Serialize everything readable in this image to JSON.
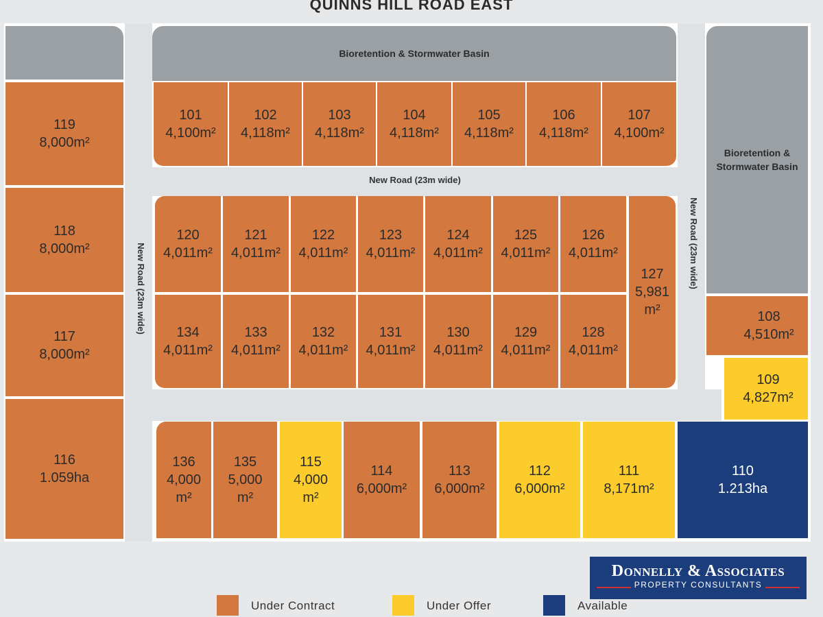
{
  "title": "QUINNS HILL ROAD EAST",
  "basins": {
    "top": "Bioretention & Stormwater Basin",
    "right": "Bioretention & Stormwater Basin"
  },
  "roads": {
    "horizontal": "New Road (23m wide)",
    "left_vertical": "New Road (23m wide)",
    "right_vertical": "New Road (23m wide)"
  },
  "colors": {
    "under_contract": "#d3783f",
    "under_offer": "#fbcc2b",
    "available": "#1c3d7c",
    "basin": "#9aa0a4"
  },
  "lots": {
    "l101": {
      "num": "101",
      "area": "4,100m²",
      "status": "under_contract"
    },
    "l102": {
      "num": "102",
      "area": "4,118m²",
      "status": "under_contract"
    },
    "l103": {
      "num": "103",
      "area": "4,118m²",
      "status": "under_contract"
    },
    "l104": {
      "num": "104",
      "area": "4,118m²",
      "status": "under_contract"
    },
    "l105": {
      "num": "105",
      "area": "4,118m²",
      "status": "under_contract"
    },
    "l106": {
      "num": "106",
      "area": "4,118m²",
      "status": "under_contract"
    },
    "l107": {
      "num": "107",
      "area": "4,100m²",
      "status": "under_contract"
    },
    "l108": {
      "num": "108",
      "area": "4,510m²",
      "status": "under_contract"
    },
    "l109": {
      "num": "109",
      "area": "4,827m²",
      "status": "under_offer"
    },
    "l110": {
      "num": "110",
      "area": "1.213ha",
      "status": "available"
    },
    "l111": {
      "num": "111",
      "area": "8,171m²",
      "status": "under_offer"
    },
    "l112": {
      "num": "112",
      "area": "6,000m²",
      "status": "under_offer"
    },
    "l113": {
      "num": "113",
      "area": "6,000m²",
      "status": "under_contract"
    },
    "l114": {
      "num": "114",
      "area": "6,000m²",
      "status": "under_contract"
    },
    "l115": {
      "num": "115",
      "area": "4,000 m²",
      "status": "under_offer"
    },
    "l116": {
      "num": "116",
      "area": "1.059ha",
      "status": "under_contract"
    },
    "l117": {
      "num": "117",
      "area": "8,000m²",
      "status": "under_contract"
    },
    "l118": {
      "num": "118",
      "area": "8,000m²",
      "status": "under_contract"
    },
    "l119": {
      "num": "119",
      "area": "8,000m²",
      "status": "under_contract"
    },
    "l120": {
      "num": "120",
      "area": "4,011m²",
      "status": "under_contract"
    },
    "l121": {
      "num": "121",
      "area": "4,011m²",
      "status": "under_contract"
    },
    "l122": {
      "num": "122",
      "area": "4,011m²",
      "status": "under_contract"
    },
    "l123": {
      "num": "123",
      "area": "4,011m²",
      "status": "under_contract"
    },
    "l124": {
      "num": "124",
      "area": "4,011m²",
      "status": "under_contract"
    },
    "l125": {
      "num": "125",
      "area": "4,011m²",
      "status": "under_contract"
    },
    "l126": {
      "num": "126",
      "area": "4,011m²",
      "status": "under_contract"
    },
    "l127": {
      "num": "127",
      "area": "5,981 m²",
      "status": "under_contract"
    },
    "l128": {
      "num": "128",
      "area": "4,011m²",
      "status": "under_contract"
    },
    "l129": {
      "num": "129",
      "area": "4,011m²",
      "status": "under_contract"
    },
    "l130": {
      "num": "130",
      "area": "4,011m²",
      "status": "under_contract"
    },
    "l131": {
      "num": "131",
      "area": "4,011m²",
      "status": "under_contract"
    },
    "l132": {
      "num": "132",
      "area": "4,011m²",
      "status": "under_contract"
    },
    "l133": {
      "num": "133",
      "area": "4,011m²",
      "status": "under_contract"
    },
    "l134": {
      "num": "134",
      "area": "4,011m²",
      "status": "under_contract"
    },
    "l135": {
      "num": "135",
      "area": "5,000 m²",
      "status": "under_contract"
    },
    "l136": {
      "num": "136",
      "area": "4,000 m²",
      "status": "under_contract"
    }
  },
  "legend": {
    "under_contract": "Under Contract",
    "under_offer": "Under Offer",
    "available": "Available"
  },
  "logo": {
    "name": "Donnelly & Associates",
    "tagline": "PROPERTY CONSULTANTS"
  }
}
